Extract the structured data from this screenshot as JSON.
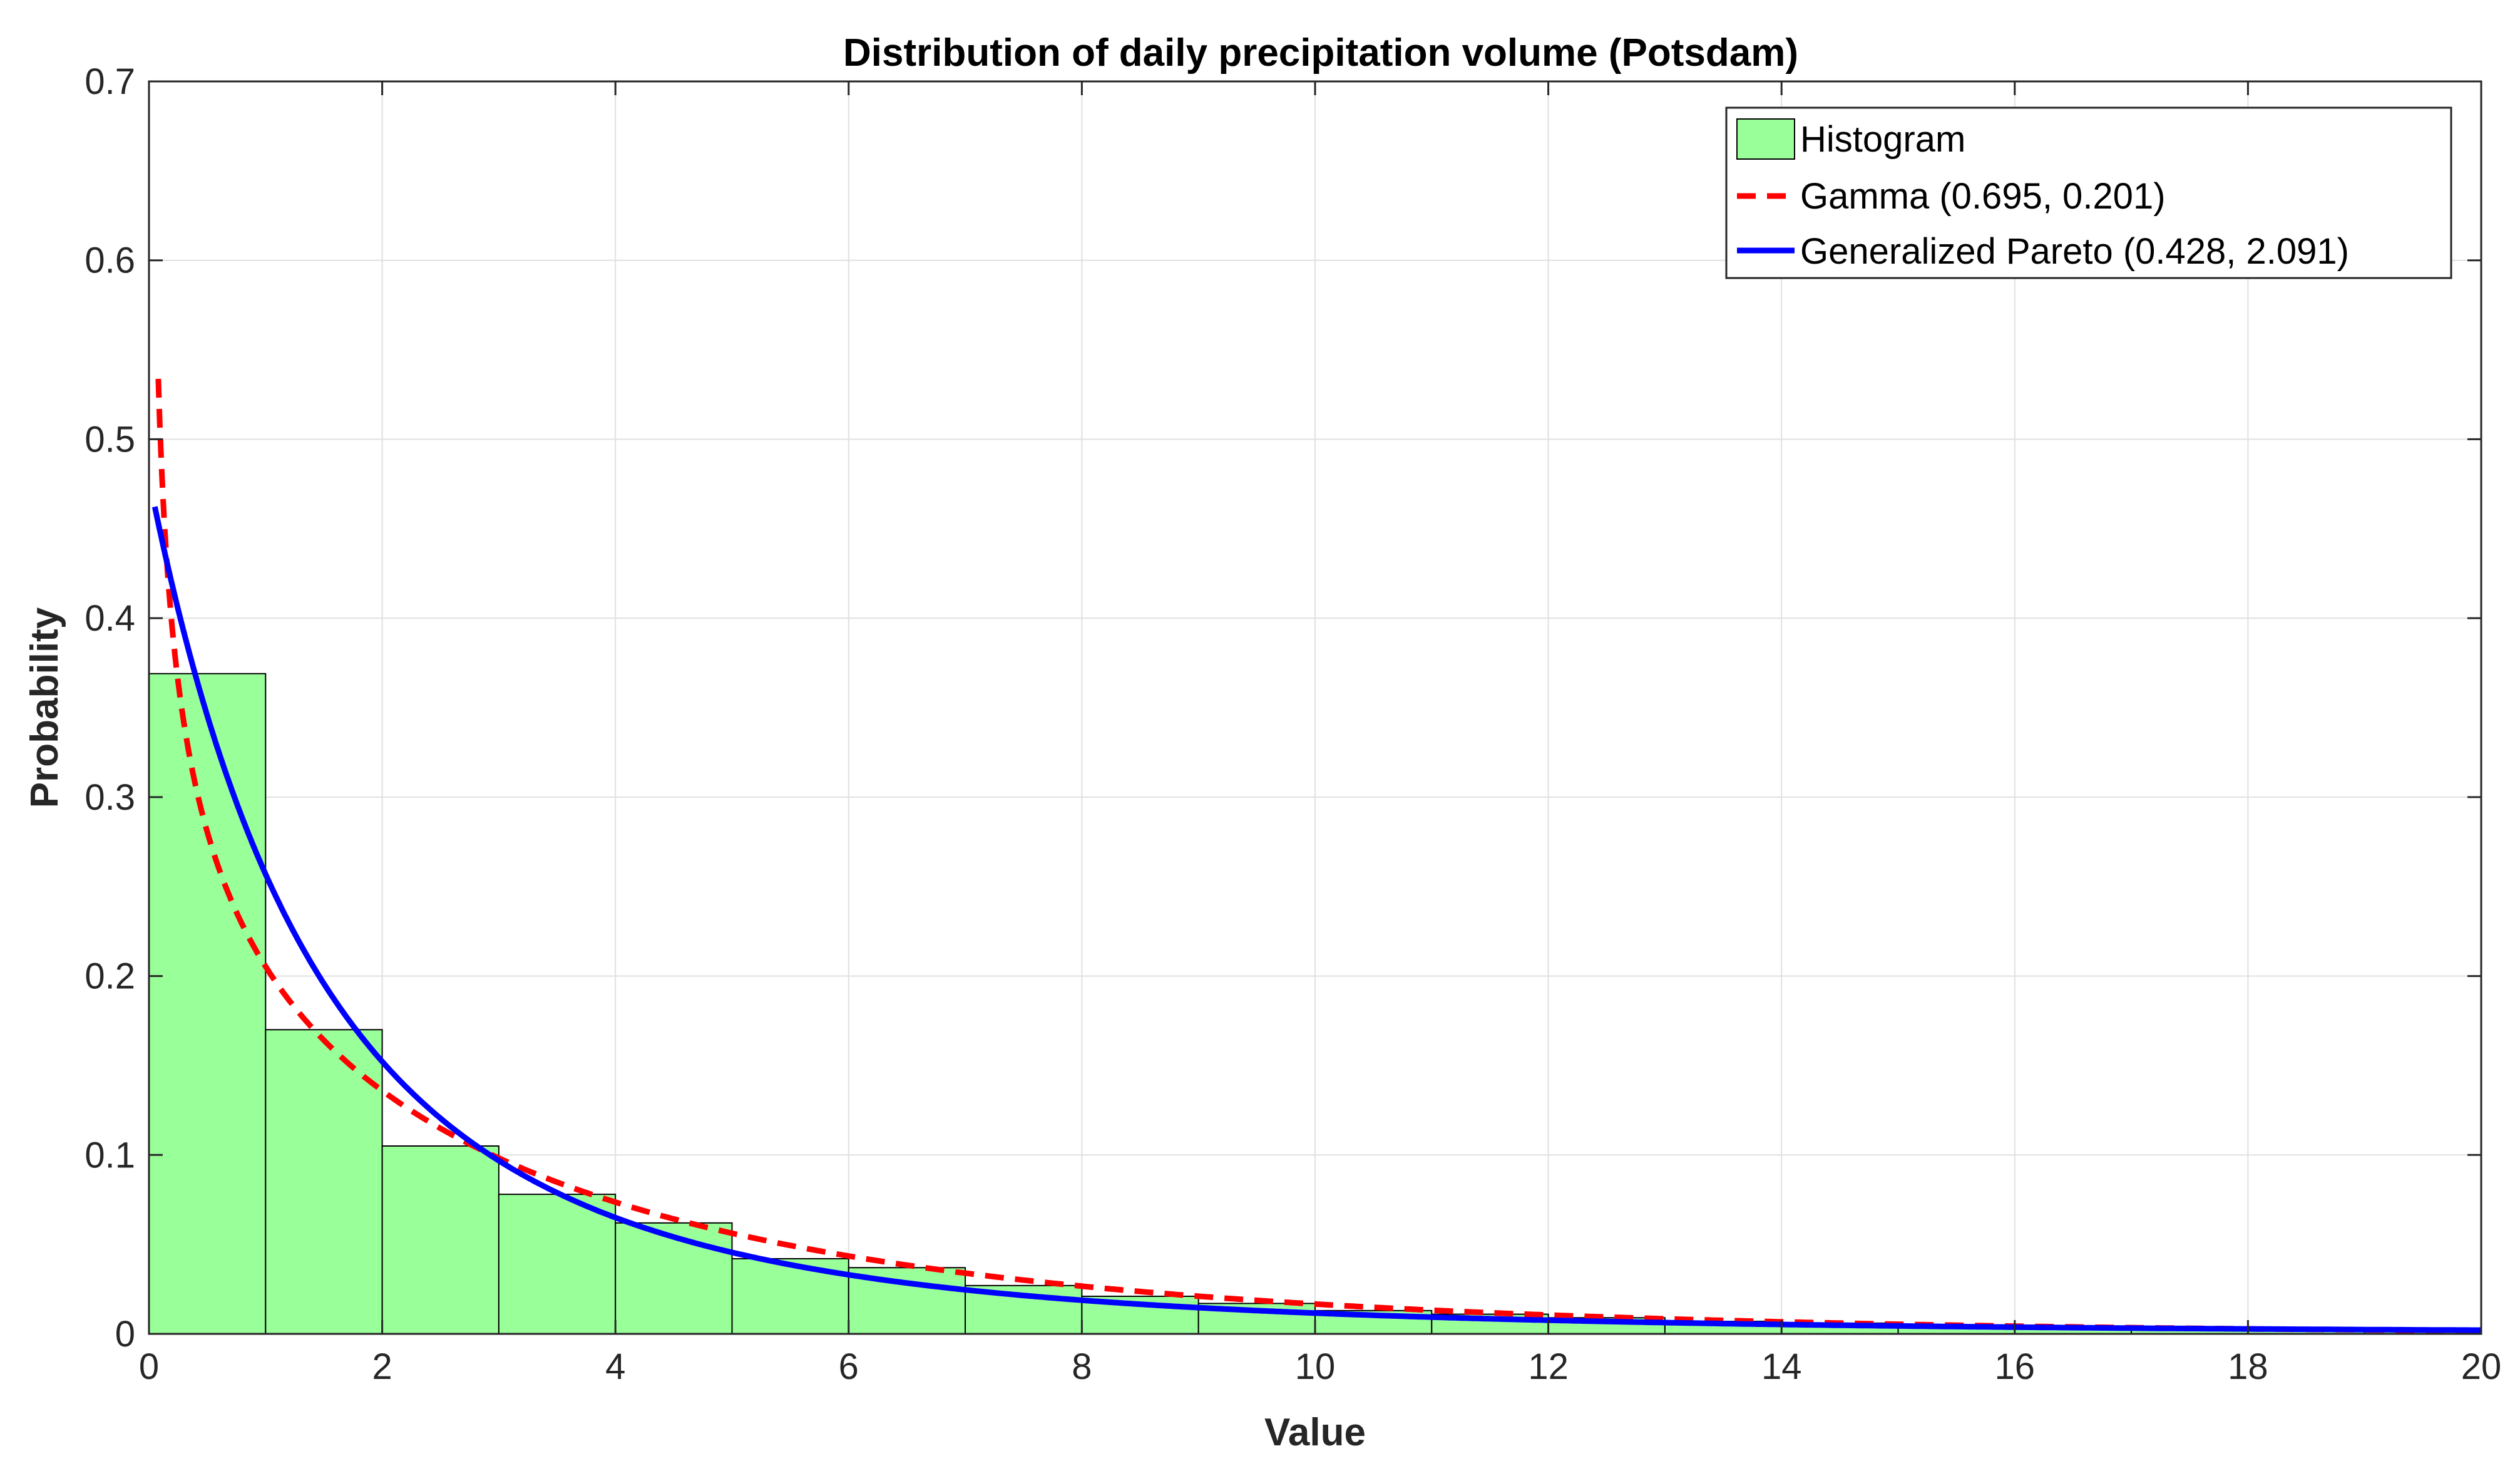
{
  "chart_data": {
    "type": "bar",
    "title": "Distribution of daily precipitation volume (Potsdam)",
    "xlabel": "Value",
    "ylabel": "Probability",
    "xlim": [
      0,
      20
    ],
    "ylim": [
      0,
      0.7
    ],
    "grid": true,
    "legend_position": "top-right",
    "x_ticks": [
      0,
      2,
      4,
      6,
      8,
      10,
      12,
      14,
      16,
      18,
      20
    ],
    "x_tick_labels": [
      "0",
      "2",
      "4",
      "6",
      "8",
      "10",
      "12",
      "14",
      "16",
      "18",
      "20"
    ],
    "y_ticks": [
      0,
      0.1,
      0.2,
      0.3,
      0.4,
      0.5,
      0.6,
      0.7
    ],
    "y_tick_labels": [
      "0",
      "0.1",
      "0.2",
      "0.3",
      "0.4",
      "0.5",
      "0.6",
      "0.7"
    ],
    "histogram": {
      "name": "Histogram",
      "bin_edges": [
        0,
        1,
        2,
        3,
        4,
        5,
        6,
        7,
        8,
        9,
        10,
        11,
        12,
        13,
        14,
        15,
        16,
        17,
        18,
        19,
        20
      ],
      "values": [
        0.369,
        0.17,
        0.105,
        0.078,
        0.062,
        0.042,
        0.037,
        0.027,
        0.021,
        0.017,
        0.013,
        0.011,
        0.009,
        0.007,
        0.006,
        0.005,
        0.004,
        0.003,
        0.003,
        0.002
      ],
      "color": "#99ff99",
      "edge_color": "#000000"
    },
    "series": [
      {
        "name": "Gamma (0.695, 0.201)",
        "kind": "gamma_pdf",
        "shape": 0.695,
        "rate": 0.201,
        "color": "#ff0000",
        "style": "dashed"
      },
      {
        "name": "Generalized Pareto (0.428, 2.091)",
        "kind": "gpd_pdf",
        "shape": 0.428,
        "scale": 2.091,
        "color": "#0000ff",
        "style": "solid"
      }
    ]
  }
}
